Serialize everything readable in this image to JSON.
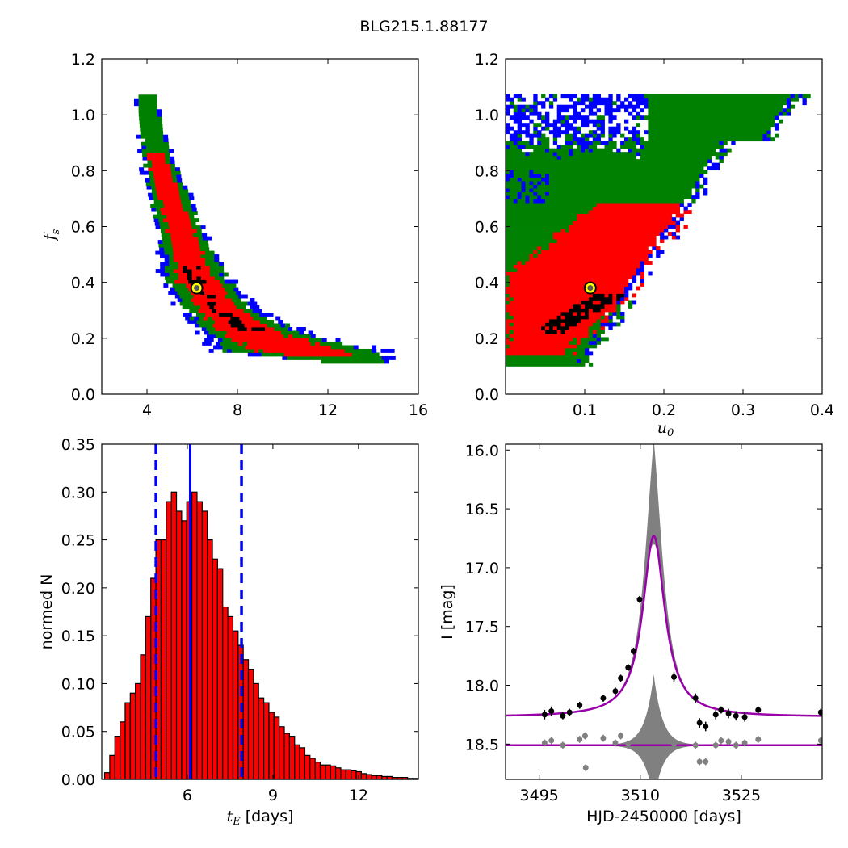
{
  "title": "BLG215.1.88177",
  "chart_data": [
    {
      "type": "heatmap",
      "panel": "top-left",
      "xlabel": "",
      "ylabel": "f_s",
      "ylabel_display": "f",
      "ylabel_sub": "s",
      "xlim": [
        2,
        16
      ],
      "ylim": [
        0.0,
        1.2
      ],
      "xticks": [
        4,
        8,
        12,
        16
      ],
      "yticks": [
        0.0,
        0.2,
        0.4,
        0.6,
        0.8,
        1.0,
        1.2
      ],
      "levels": [
        "black",
        "red",
        "green",
        "blue"
      ],
      "colors": {
        "black": "#000000",
        "red": "#ff0000",
        "green": "#008000",
        "blue": "#0000ff"
      },
      "ridge": {
        "fs": [
          1.07,
          1.0,
          0.9,
          0.8,
          0.7,
          0.6,
          0.5,
          0.4,
          0.3,
          0.25,
          0.2,
          0.15,
          0.11
        ],
        "tE_center": [
          3.9,
          4.0,
          4.2,
          4.5,
          4.9,
          5.3,
          5.7,
          6.1,
          7.1,
          7.9,
          8.9,
          10.6,
          13.0
        ],
        "half_width": [
          0.25,
          0.3,
          0.35,
          0.45,
          0.55,
          0.6,
          0.7,
          0.9,
          1.0,
          1.2,
          1.5,
          2.2,
          1.0
        ]
      },
      "best_fit": {
        "x": 6.2,
        "y": 0.38,
        "marker_color": "#ffff00"
      }
    },
    {
      "type": "heatmap",
      "panel": "top-right",
      "xlabel": "u_0",
      "xlabel_display": "u",
      "xlabel_sub": "0",
      "ylabel": "",
      "xlim": [
        0.0,
        0.4
      ],
      "ylim": [
        0.0,
        1.2
      ],
      "xticks": [
        0.1,
        0.2,
        0.3,
        0.4
      ],
      "yticks": [
        0.0,
        0.2,
        0.4,
        0.6,
        0.8,
        1.0,
        1.2
      ],
      "levels": [
        "black",
        "red",
        "green",
        "blue"
      ],
      "colors": {
        "black": "#000000",
        "red": "#ff0000",
        "green": "#008000",
        "blue": "#0000ff"
      },
      "best_fit": {
        "x": 0.107,
        "y": 0.38,
        "marker_color": "#ffff00"
      }
    },
    {
      "type": "bar",
      "panel": "bottom-left",
      "xlabel": "t_E [days]",
      "xlabel_display": "t",
      "xlabel_sub": "E",
      "xlabel_unit": " [days]",
      "ylabel": "normed N",
      "xlim": [
        3.0,
        14.1
      ],
      "ylim": [
        0.0,
        0.35
      ],
      "xticks": [
        6,
        9,
        12
      ],
      "yticks": [
        0.0,
        0.05,
        0.1,
        0.15,
        0.2,
        0.25,
        0.3,
        0.35
      ],
      "bin_start": 3.1,
      "bin_width": 0.18,
      "values": [
        0.007,
        0.025,
        0.045,
        0.06,
        0.08,
        0.09,
        0.1,
        0.13,
        0.17,
        0.21,
        0.25,
        0.25,
        0.29,
        0.3,
        0.28,
        0.27,
        0.29,
        0.3,
        0.29,
        0.28,
        0.25,
        0.23,
        0.22,
        0.18,
        0.17,
        0.155,
        0.14,
        0.125,
        0.115,
        0.1,
        0.085,
        0.08,
        0.07,
        0.065,
        0.055,
        0.048,
        0.045,
        0.036,
        0.033,
        0.025,
        0.022,
        0.018,
        0.015,
        0.015,
        0.014,
        0.012,
        0.01,
        0.01,
        0.009,
        0.008,
        0.006,
        0.005,
        0.004,
        0.004,
        0.003,
        0.003,
        0.002,
        0.002,
        0.002,
        0.001,
        0.001
      ],
      "bar_color": "#ff0000",
      "median": 6.1,
      "bounds": [
        4.9,
        7.9
      ],
      "line_color": "#0000ff"
    },
    {
      "type": "line",
      "panel": "bottom-right",
      "xlabel": "HJD-2450000 [days]",
      "ylabel": "I [mag]",
      "xlim": [
        3490,
        3537
      ],
      "ylim": [
        18.8,
        15.95
      ],
      "xticks": [
        3495,
        3510,
        3525
      ],
      "yticks": [
        16.0,
        16.5,
        17.0,
        17.5,
        18.0,
        18.5
      ],
      "model": {
        "t0": 3512.0,
        "baseline": 18.27,
        "peak": 16.73,
        "width": 2.0,
        "color": "#9900aa"
      },
      "band": {
        "peak": 15.95,
        "color": "#808080"
      },
      "residual_baseline": 18.51,
      "data": [
        {
          "x": 3495.8,
          "y": 18.25,
          "err": 0.04
        },
        {
          "x": 3496.8,
          "y": 18.22,
          "err": 0.04
        },
        {
          "x": 3498.5,
          "y": 18.26,
          "err": 0.03
        },
        {
          "x": 3499.5,
          "y": 18.23,
          "err": 0.03
        },
        {
          "x": 3501.0,
          "y": 18.17,
          "err": 0.03
        },
        {
          "x": 3504.5,
          "y": 18.11,
          "err": 0.03
        },
        {
          "x": 3506.3,
          "y": 18.05,
          "err": 0.03
        },
        {
          "x": 3507.1,
          "y": 17.94,
          "err": 0.03
        },
        {
          "x": 3508.2,
          "y": 17.85,
          "err": 0.03
        },
        {
          "x": 3509.0,
          "y": 17.71,
          "err": 0.03
        },
        {
          "x": 3509.9,
          "y": 17.27,
          "err": 0.03
        },
        {
          "x": 3515.0,
          "y": 17.93,
          "err": 0.04
        },
        {
          "x": 3518.2,
          "y": 18.11,
          "err": 0.04
        },
        {
          "x": 3518.8,
          "y": 18.32,
          "err": 0.04
        },
        {
          "x": 3519.7,
          "y": 18.35,
          "err": 0.04
        },
        {
          "x": 3521.2,
          "y": 18.25,
          "err": 0.04
        },
        {
          "x": 3522.0,
          "y": 18.21,
          "err": 0.03
        },
        {
          "x": 3523.1,
          "y": 18.24,
          "err": 0.04
        },
        {
          "x": 3524.2,
          "y": 18.26,
          "err": 0.04
        },
        {
          "x": 3525.5,
          "y": 18.27,
          "err": 0.04
        },
        {
          "x": 3527.5,
          "y": 18.21,
          "err": 0.03
        },
        {
          "x": 3536.8,
          "y": 18.23,
          "err": 0.03
        }
      ],
      "residuals": [
        {
          "x": 3495.8,
          "y": 18.49
        },
        {
          "x": 3496.8,
          "y": 18.47
        },
        {
          "x": 3498.5,
          "y": 18.51
        },
        {
          "x": 3501.0,
          "y": 18.46
        },
        {
          "x": 3501.9,
          "y": 18.7
        },
        {
          "x": 3501.8,
          "y": 18.43
        },
        {
          "x": 3504.5,
          "y": 18.45
        },
        {
          "x": 3506.3,
          "y": 18.49
        },
        {
          "x": 3507.1,
          "y": 18.43
        },
        {
          "x": 3508.2,
          "y": 18.5
        },
        {
          "x": 3515.0,
          "y": 18.5
        },
        {
          "x": 3518.2,
          "y": 18.51
        },
        {
          "x": 3518.8,
          "y": 18.65
        },
        {
          "x": 3519.7,
          "y": 18.65
        },
        {
          "x": 3521.2,
          "y": 18.51
        },
        {
          "x": 3522.0,
          "y": 18.47
        },
        {
          "x": 3523.1,
          "y": 18.48
        },
        {
          "x": 3524.2,
          "y": 18.51
        },
        {
          "x": 3525.5,
          "y": 18.49
        },
        {
          "x": 3527.5,
          "y": 18.46
        },
        {
          "x": 3536.8,
          "y": 18.47
        }
      ]
    }
  ]
}
